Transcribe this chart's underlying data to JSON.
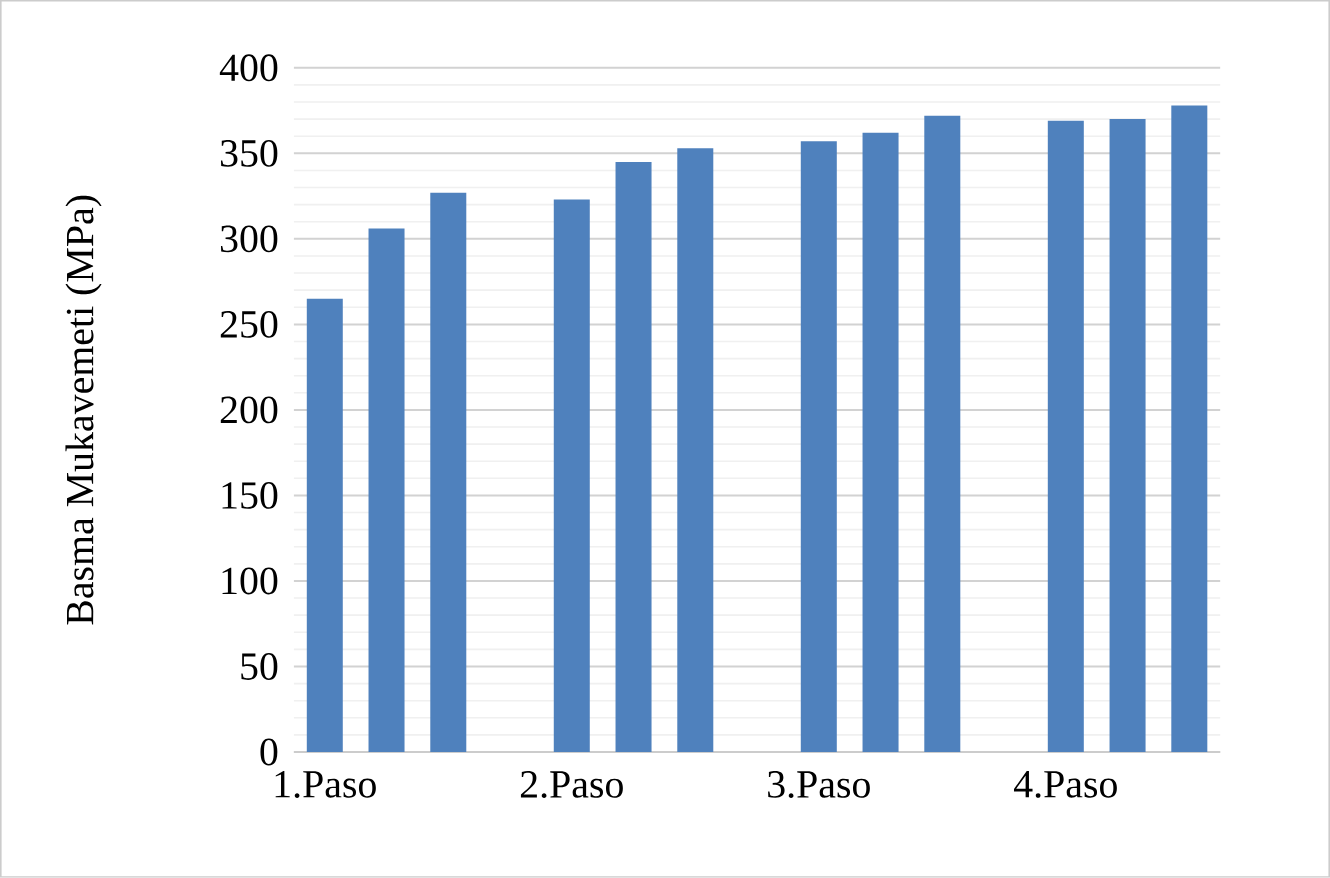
{
  "chart_data": {
    "type": "bar",
    "ylabel": "Basma Mukavemeti (MPa)",
    "categories": [
      "1.Paso",
      null,
      null,
      null,
      "2.Paso",
      null,
      null,
      null,
      "3.Paso",
      null,
      null,
      null,
      "4.Paso",
      null,
      null
    ],
    "values": [
      265,
      306,
      327,
      null,
      323,
      345,
      353,
      null,
      357,
      362,
      372,
      null,
      369,
      370,
      378
    ],
    "color": "#4f81bd",
    "ylim": [
      0,
      400
    ],
    "yticks": [
      0,
      50,
      100,
      150,
      200,
      250,
      300,
      350,
      400
    ],
    "grid": "y"
  }
}
